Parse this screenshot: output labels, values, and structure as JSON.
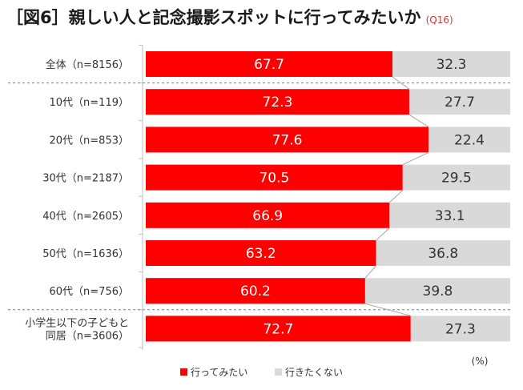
{
  "header": {
    "title": "［図6］親しい人と記念撮影スポットに行ってみたいか",
    "question_code": "(Q16)"
  },
  "chart_data": {
    "type": "bar",
    "orientation": "horizontal",
    "stacked": true,
    "percent": true,
    "categories": [
      [
        "全体（n=8156）"
      ],
      [
        "10代（n=119）"
      ],
      [
        "20代（n=853）"
      ],
      [
        "30代（n=2187）"
      ],
      [
        "40代（n=2605）"
      ],
      [
        "50代（n=1636）"
      ],
      [
        "60代（n=756）"
      ],
      [
        "小学生以下の子どもと",
        "同居（n=3606）"
      ]
    ],
    "series": [
      {
        "name": "行ってみたい",
        "color": "#ff0000",
        "values": [
          67.7,
          72.3,
          77.6,
          70.5,
          66.9,
          63.2,
          60.2,
          72.7
        ]
      },
      {
        "name": "行きたくない",
        "color": "#d9d9d9",
        "values": [
          32.3,
          27.7,
          22.4,
          29.5,
          33.1,
          36.8,
          39.8,
          27.3
        ]
      }
    ],
    "value_label_colors": [
      "#ffffff",
      "#333333"
    ],
    "unit": "(%)",
    "xlim": [
      0,
      100
    ],
    "legend_position": "bottom-left",
    "dashed_separators_after": [
      0,
      6
    ]
  }
}
